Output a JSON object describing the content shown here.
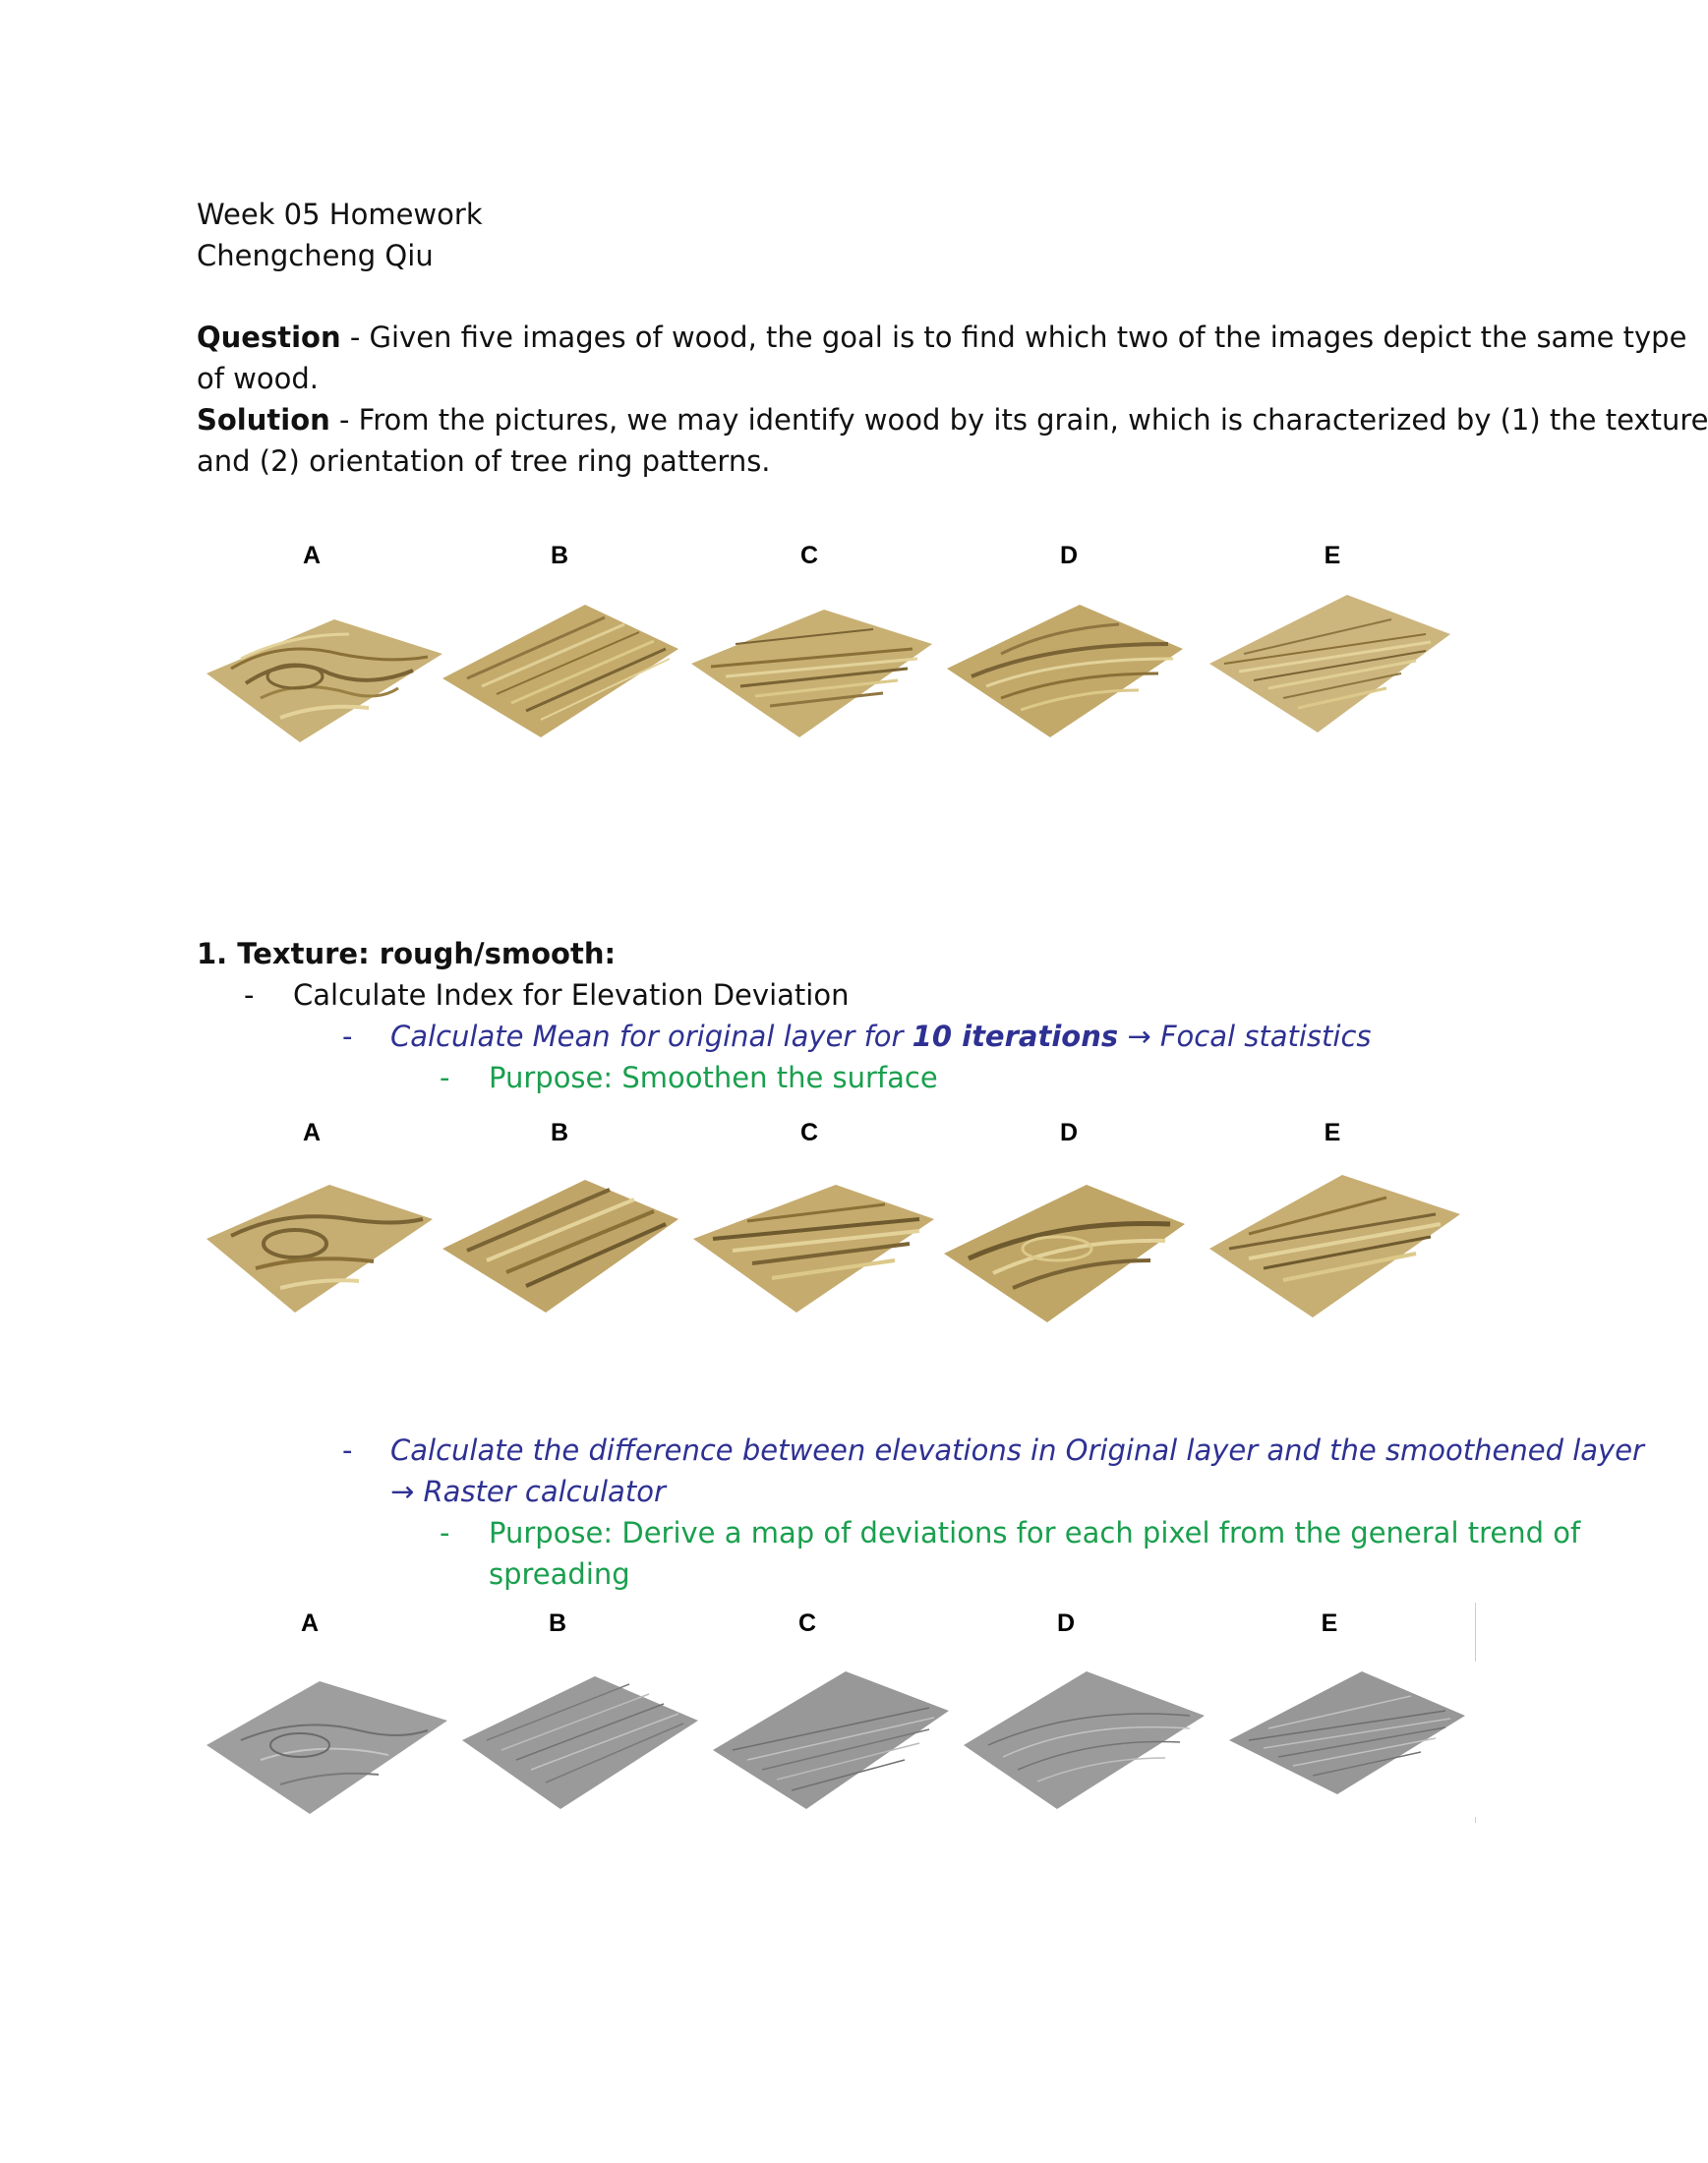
{
  "header": {
    "title": "Week 05 Homework",
    "author": "Chengcheng Qiu"
  },
  "question": {
    "label": "Question",
    "text_line1": " - Given five images of wood, the goal is to find which two of the  images depict the same type",
    "text_line2": "of wood."
  },
  "solution": {
    "label": "Solution",
    "text_line1": " - From the pictures, we may identify wood by its grain, which is characterized by (1) the texture",
    "text_line2": "and (2) orientation of tree ring patterns."
  },
  "figure_labels": [
    "A",
    "B",
    "C",
    "D",
    "E"
  ],
  "section1": {
    "heading": "1. Texture: rough/smooth:",
    "bullet": "-",
    "item1": "Calculate Index for Elevation Deviation",
    "step1": {
      "text_a": "Calculate Mean for original layer for ",
      "text_bold": "10 iterations",
      "text_b": " → Focal statistics",
      "purpose": "Purpose: Smoothen the surface"
    },
    "step2": {
      "line1": "Calculate the difference between elevations in Original layer and the smoothened layer",
      "line2": "→ Raster calculator",
      "purpose_line1": "Purpose: Derive a map of deviations for each pixel from the general trend of",
      "purpose_line2": "spreading"
    }
  },
  "colors": {
    "blue_text": "#2e3192",
    "green_text": "#1a9f4e",
    "wood_light": "#e3d39a",
    "wood_mid": "#b89e5c",
    "wood_dark": "#7a6334",
    "grey_surface": "#9a9a9a"
  }
}
